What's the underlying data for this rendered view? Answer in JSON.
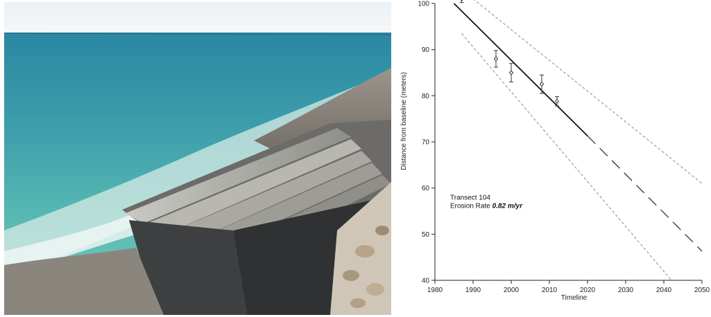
{
  "photo": {
    "subject": "beach-steps-photo",
    "colors": {
      "sky": "#f1f4f7",
      "sea": "#4fb5b0",
      "sea_far": "#2e8fa6",
      "foam": "#e9f1ee",
      "steps": "#a9a9a3",
      "shadow": "#3a3b3c"
    }
  },
  "chart_data": {
    "type": "scatter",
    "xlabel": "Timeline",
    "ylabel": "Distance from baseline (meters)",
    "xlim": [
      1980,
      2050
    ],
    "ylim": [
      40,
      100
    ],
    "x_ticks": [
      1980,
      1990,
      2000,
      2010,
      2020,
      2030,
      2040,
      2050
    ],
    "y_ticks": [
      40,
      50,
      60,
      70,
      80,
      90,
      100
    ],
    "grid": false,
    "points": [
      {
        "x": 1987,
        "y": 101.0,
        "err_low": 100.2,
        "err_high": 101.8
      },
      {
        "x": 1996,
        "y": 88.0,
        "err_low": 86.2,
        "err_high": 89.8
      },
      {
        "x": 2000,
        "y": 85.0,
        "err_low": 83.0,
        "err_high": 87.0
      },
      {
        "x": 2008,
        "y": 82.5,
        "err_low": 80.5,
        "err_high": 84.5
      },
      {
        "x": 2012,
        "y": 78.8,
        "err_low": 77.8,
        "err_high": 79.8
      }
    ],
    "regression": {
      "fit": {
        "x": [
          1985,
          2020
        ],
        "y": [
          100.0,
          71.3
        ]
      },
      "projection": {
        "x": [
          2020,
          2050
        ],
        "y": [
          71.3,
          46.3
        ]
      }
    },
    "confidence_band": {
      "upper": {
        "x": [
          1987,
          2050
        ],
        "y": [
          103.0,
          61.0
        ]
      },
      "lower": {
        "x": [
          1987,
          2042
        ],
        "y": [
          93.5,
          40.0
        ]
      }
    },
    "annotation": {
      "line1": "Transect 104",
      "line2_prefix": "Erosion Rate ",
      "line2_value": "0.82 m/yr"
    },
    "colors": {
      "axis": "#222222",
      "fit": "#111111",
      "projection": "#333333",
      "band": "#8a8a8a",
      "points": "#333333"
    }
  }
}
